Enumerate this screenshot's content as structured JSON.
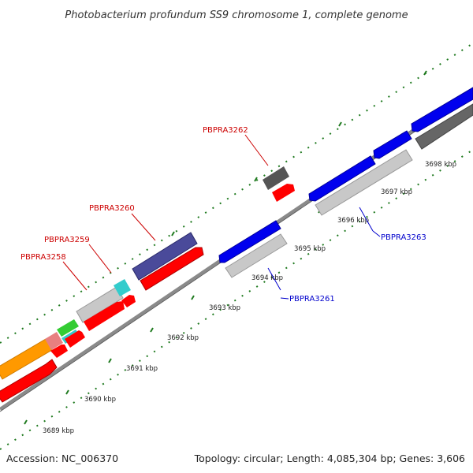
{
  "title": "Photobacterium profundum SS9 chromosome 1, complete genome",
  "footer": {
    "accession": "Accession: NC_006370",
    "summary": "Topology: circular; Length: 4,085,304 bp; Genes: 3,606"
  },
  "colors": {
    "backbone": "#8a8a8a",
    "tick": "#1f7a1f",
    "forward_label": "#cc0000",
    "reverse_label": "#0000cc",
    "cds_forward": "#ff0000",
    "cds_reverse": "#0000ee"
  },
  "axis": {
    "unit": "kbp",
    "ticks": [
      {
        "label": "3689 kbp"
      },
      {
        "label": "3690 kbp"
      },
      {
        "label": "3691 kbp"
      },
      {
        "label": "3692 kbp"
      },
      {
        "label": "3693 kbp"
      },
      {
        "label": "3694 kbp"
      },
      {
        "label": "3695 kbp"
      },
      {
        "label": "3696 kbp"
      },
      {
        "label": "3697 kbp"
      },
      {
        "label": "3698 kbp"
      }
    ]
  },
  "gene_labels": [
    {
      "text": "PBPRA3258",
      "strand": "forward"
    },
    {
      "text": "PBPRA3259",
      "strand": "forward"
    },
    {
      "text": "PBPRA3260",
      "strand": "forward"
    },
    {
      "text": "PBPRA3262",
      "strand": "forward"
    },
    {
      "text": "PBPRA3261",
      "strand": "reverse"
    },
    {
      "text": "PBPRA3263",
      "strand": "reverse"
    }
  ]
}
